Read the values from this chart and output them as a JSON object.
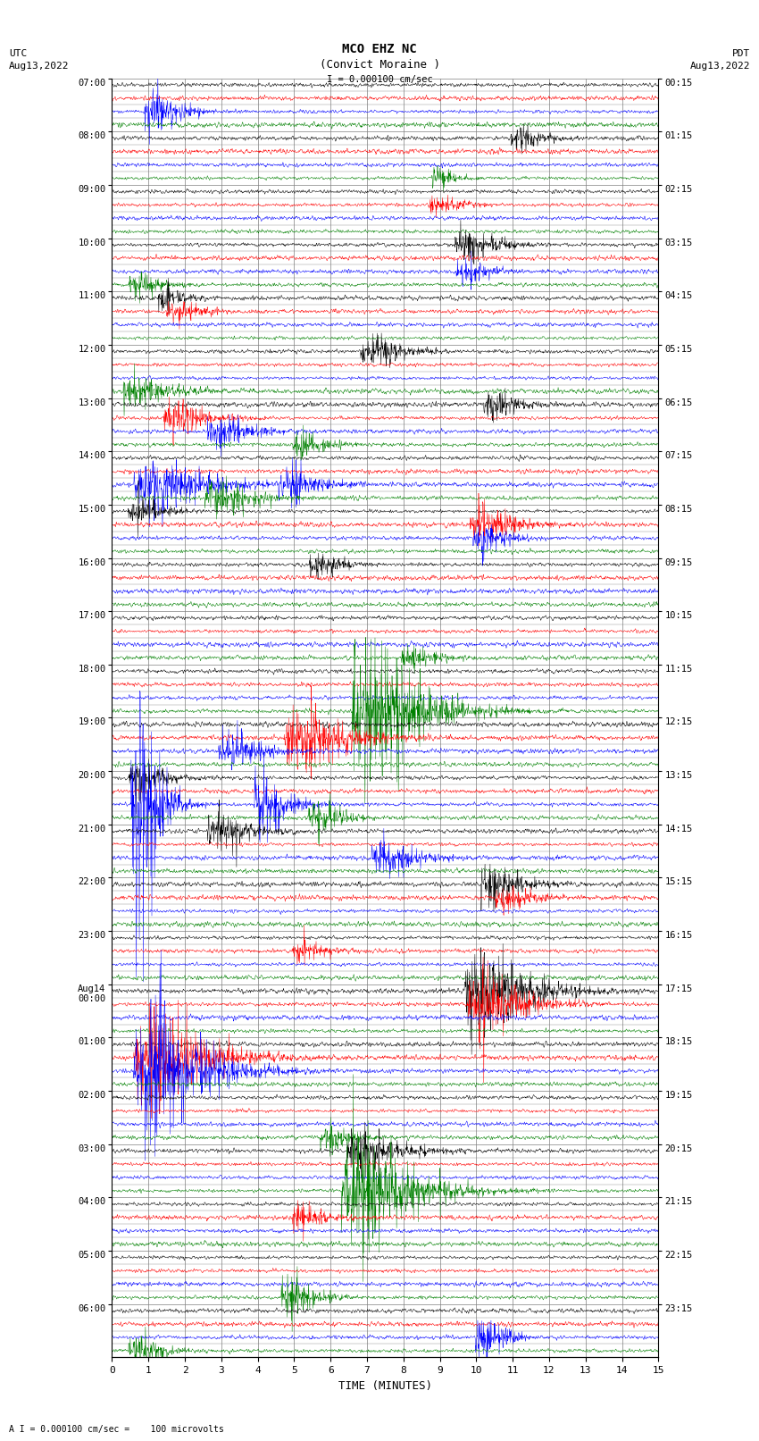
{
  "title_line1": "MCO EHZ NC",
  "title_line2": "(Convict Moraine )",
  "scale_bar": "I = 0.000100 cm/sec",
  "left_header": "UTC",
  "left_date": "Aug13,2022",
  "right_header": "PDT",
  "right_date": "Aug13,2022",
  "bottom_note": "A I = 0.000100 cm/sec =    100 microvolts",
  "xlabel": "TIME (MINUTES)",
  "xmin": 0,
  "xmax": 15,
  "xticks": [
    0,
    1,
    2,
    3,
    4,
    5,
    6,
    7,
    8,
    9,
    10,
    11,
    12,
    13,
    14,
    15
  ],
  "background_color": "#ffffff",
  "grid_color": "#888888",
  "trace_colors": [
    "black",
    "red",
    "blue",
    "green"
  ],
  "n_rows": 24,
  "traces_per_row": 4,
  "utc_times_major": [
    "07:00",
    "08:00",
    "09:00",
    "10:00",
    "11:00",
    "12:00",
    "13:00",
    "14:00",
    "15:00",
    "16:00",
    "17:00",
    "18:00",
    "19:00",
    "20:00",
    "21:00",
    "22:00",
    "23:00",
    "Aug14\n00:00",
    "01:00",
    "02:00",
    "03:00",
    "04:00",
    "05:00",
    "06:00"
  ],
  "pdt_times_major": [
    "00:15",
    "01:15",
    "02:15",
    "03:15",
    "04:15",
    "05:15",
    "06:15",
    "07:15",
    "08:15",
    "09:15",
    "10:15",
    "11:15",
    "12:15",
    "13:15",
    "14:15",
    "15:15",
    "16:15",
    "17:15",
    "18:15",
    "19:15",
    "20:15",
    "21:15",
    "22:15",
    "23:15"
  ]
}
